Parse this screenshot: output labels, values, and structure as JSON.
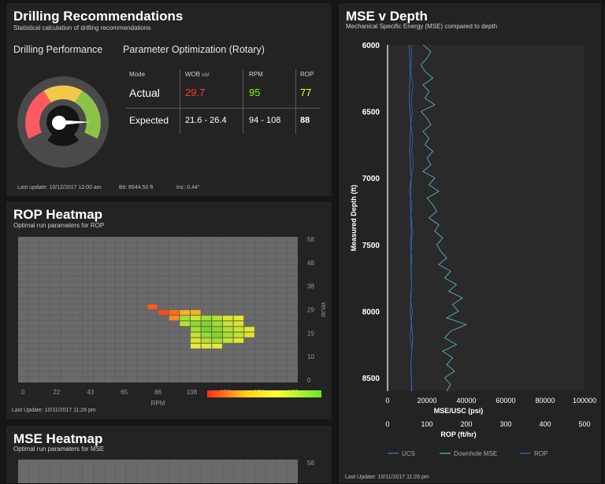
{
  "colors": {
    "panel_bg": "#232323",
    "red": "#ff3b30",
    "green": "#7cfc00",
    "yellow": "#ffff33",
    "accent_line": "#4fb3c8"
  },
  "drilling": {
    "title": "Drilling Recommendations",
    "subtitle": "Statistical calculation of drilling recommendations",
    "performance_label": "Drilling Performance",
    "optimization_label": "Parameter Optimization (Rotary)",
    "gauge_value_fraction": 0.66,
    "table": {
      "headers": {
        "mode": "Mode",
        "wob": "WOB",
        "wob_unit": "klbf",
        "rpm": "RPM",
        "rop": "ROP"
      },
      "actual": {
        "label": "Actual",
        "wob": "29.7",
        "rpm": "95",
        "rop": "77"
      },
      "expected": {
        "label": "Expected",
        "wob": "21.6 - 26.4",
        "rpm": "94 - 108",
        "rop": "88"
      }
    },
    "footer": {
      "last_update": "Last update: 10/12/2017 12:00 am",
      "bit": "Bit: 8644.50 ft",
      "inc": "Inc: 0.44°"
    }
  },
  "rop_heatmap": {
    "title": "ROP Heatmap",
    "subtitle": "Optimal run paramaters for ROP",
    "x_label": "RPM",
    "y_label": "WOB",
    "x_ticks": [
      "0",
      "22",
      "43",
      "65",
      "86",
      "108",
      "130",
      "151",
      "173"
    ],
    "y_ticks": [
      "58",
      "48",
      "38",
      "29",
      "19",
      "10",
      "0"
    ],
    "footer": "Last Update: 10/11/2017 11:26 pm"
  },
  "mse_heatmap": {
    "title": "MSE Heatmap",
    "subtitle": "Optimal run paramaters for MSE",
    "y_tick_top": "58"
  },
  "mse_depth": {
    "title": "MSE v Depth",
    "subtitle": "Mechanical Specific Energy (MSE) compared to depth",
    "footer": "Last Update: 10/11/2017 11:26 pm"
  },
  "chart_data": {
    "type": "line",
    "title": "MSE v Depth",
    "ylabel": "Measured Depth (ft)",
    "xlabel": "MSE/USC (psi)",
    "x2label": "ROP (ft/hr)",
    "ylim": [
      6000,
      8600
    ],
    "xlim": [
      0,
      100000
    ],
    "x2lim": [
      0,
      500
    ],
    "y_ticks": [
      "6000",
      "6500",
      "7000",
      "7500",
      "8000",
      "8500"
    ],
    "x_ticks": [
      "0",
      "20000",
      "40000",
      "60000",
      "80000",
      "100000"
    ],
    "x2_ticks": [
      "0",
      "100",
      "200",
      "300",
      "400",
      "500"
    ],
    "legend": [
      "UCS",
      "Downhole MSE",
      "ROP"
    ],
    "series": [
      {
        "name": "UCS",
        "depth": [
          6000,
          6200,
          6400,
          6600,
          6800,
          7000,
          7200,
          7400,
          7600,
          7800,
          8000,
          8200,
          8400,
          8600
        ],
        "values": [
          11000,
          11500,
          11000,
          11800,
          11200,
          12000,
          11500,
          12500,
          11800,
          12200,
          11500,
          12800,
          11800,
          12300
        ]
      },
      {
        "name": "Downhole MSE",
        "depth": [
          6000,
          6050,
          6100,
          6150,
          6200,
          6250,
          6300,
          6350,
          6400,
          6450,
          6500,
          6550,
          6600,
          6650,
          6700,
          6750,
          6800,
          6850,
          6900,
          6950,
          7000,
          7050,
          7100,
          7150,
          7200,
          7250,
          7300,
          7350,
          7400,
          7450,
          7500,
          7550,
          7600,
          7650,
          7700,
          7750,
          7800,
          7850,
          7900,
          7950,
          8000,
          8050,
          8100,
          8150,
          8200,
          8250,
          8300,
          8350,
          8400,
          8450,
          8500,
          8550,
          8600
        ],
        "values": [
          18000,
          22000,
          20000,
          17000,
          19000,
          23000,
          18000,
          21000,
          19000,
          24000,
          17000,
          20000,
          22000,
          18000,
          21000,
          19000,
          23000,
          20000,
          22000,
          18000,
          24000,
          21000,
          26000,
          20000,
          23000,
          25000,
          21000,
          26000,
          24000,
          28000,
          25000,
          27000,
          30000,
          26000,
          32000,
          29000,
          35000,
          31000,
          38000,
          33000,
          36000,
          30000,
          40000,
          32000,
          29000,
          35000,
          28000,
          33000,
          30000,
          34000,
          29000,
          32000,
          30000
        ]
      },
      {
        "name": "ROP",
        "depth": [
          6000,
          6100,
          6200,
          6300,
          6400,
          6500,
          6600,
          6700,
          6800,
          6900,
          7000,
          7100,
          7200,
          7300,
          7400,
          7500,
          7600,
          7700,
          7800,
          7900,
          8000,
          8100,
          8200,
          8300,
          8400,
          8500,
          8600
        ],
        "values": [
          60,
          62,
          58,
          65,
          60,
          63,
          59,
          64,
          61,
          66,
          60,
          55,
          62,
          58,
          60,
          57,
          62,
          59,
          61,
          58,
          63,
          60,
          57,
          62,
          59,
          61,
          60
        ]
      }
    ]
  }
}
